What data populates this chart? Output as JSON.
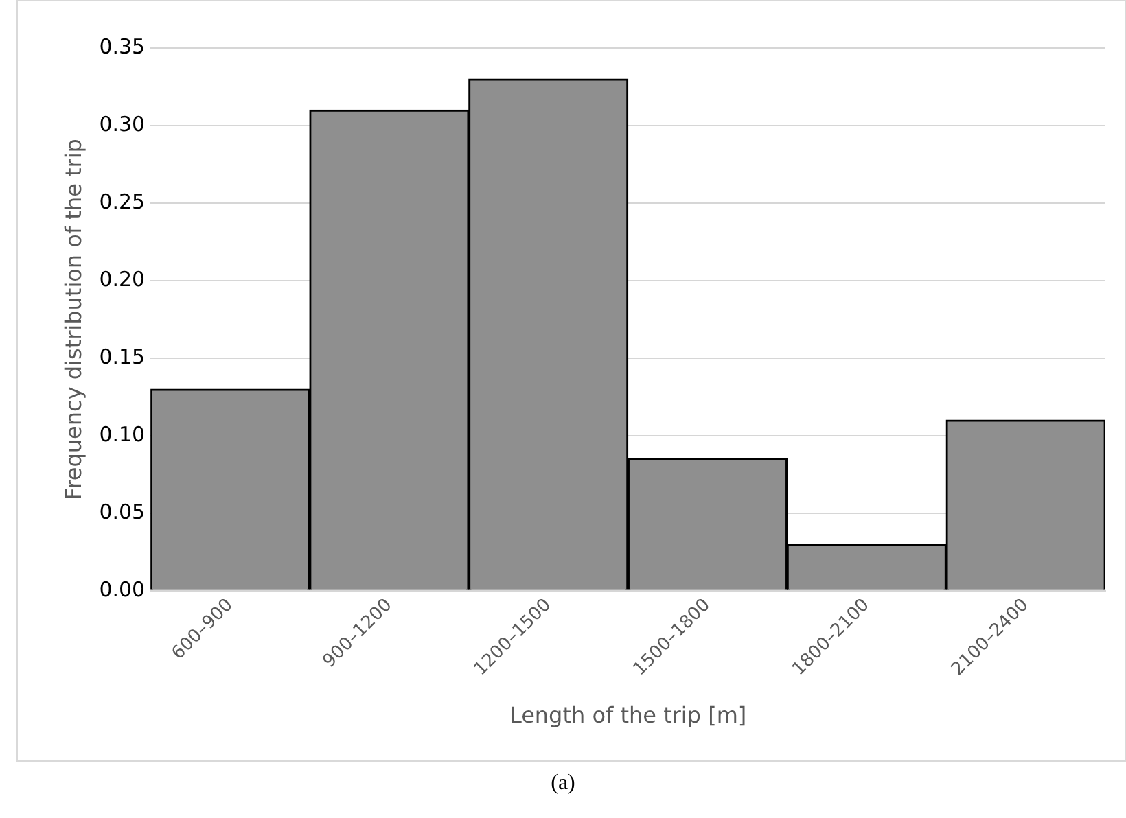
{
  "chart_data": {
    "type": "bar",
    "xlabel": "Length of the trip [m]",
    "ylabel": "Frequency distribution of the trip",
    "categories": [
      "600–900",
      "900–1200",
      "1200–1500",
      "1500–1800",
      "1800–2100",
      "2100–2400"
    ],
    "values": [
      0.13,
      0.31,
      0.33,
      0.085,
      0.03,
      0.11
    ],
    "color": "#8f8f8f",
    "ylim": [
      0,
      0.35
    ],
    "yticks": [
      {
        "value": 0,
        "label": "0.00"
      },
      {
        "value": 0.05,
        "label": "0.05"
      },
      {
        "value": 0.1,
        "label": "0.10"
      },
      {
        "value": 0.15,
        "label": "0.15"
      },
      {
        "value": 0.2,
        "label": "0.20"
      },
      {
        "value": 0.25,
        "label": "0.25"
      },
      {
        "value": 0.3,
        "label": "0.30"
      },
      {
        "value": 0.35,
        "label": "0.35"
      }
    ],
    "grid": "y",
    "legend": false,
    "annotations": [
      "(a)"
    ]
  }
}
